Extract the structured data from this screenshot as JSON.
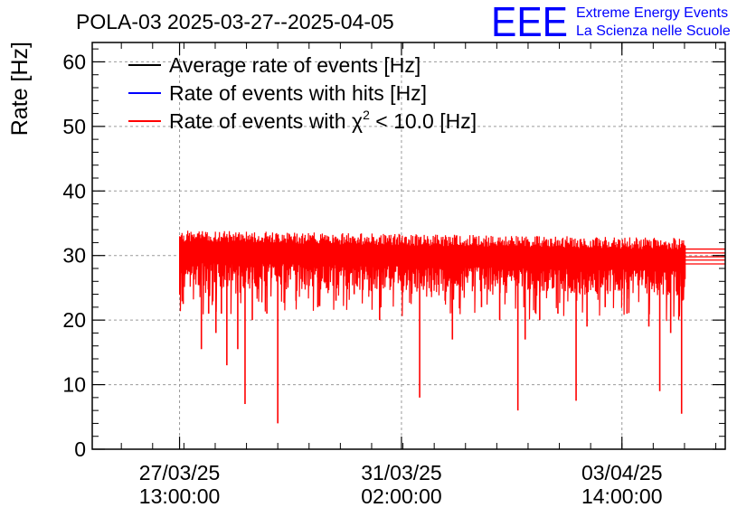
{
  "chart_data": {
    "type": "line",
    "title": "POLA-03 2025-03-27--2025-04-05",
    "ylabel": "Rate [Hz]",
    "xlabel": "",
    "ylim": [
      0,
      63
    ],
    "y_ticks": [
      0,
      10,
      20,
      30,
      40,
      50,
      60
    ],
    "x_range_hours": [
      0,
      174
    ],
    "x_ticks": [
      {
        "line1": "27/03/25",
        "line2": "13:00:00"
      },
      {
        "line1": "31/03/25",
        "line2": "02:00:00"
      },
      {
        "line1": "03/04/25",
        "line2": "14:00:00"
      }
    ],
    "grid": true,
    "legend_position": "top-left",
    "legend": [
      {
        "label": "Average rate of events [Hz]",
        "color": "#000000"
      },
      {
        "label": "Rate of events with hits [Hz]",
        "color": "#0000ff"
      },
      {
        "label_prefix": "Rate of events with ",
        "label_symbol": "χ",
        "label_sup": "2",
        "label_suffix": " < 10.0 [Hz]",
        "color": "#ff0000"
      }
    ],
    "series": [
      {
        "name": "Rate of events with χ2 < 10.0 [Hz]",
        "color": "#ff0000",
        "baseline": 30.0,
        "time_span_hours": [
          24,
          163
        ],
        "drops": [
          {
            "t": 25,
            "y": 22.5
          },
          {
            "t": 30,
            "y": 15.5
          },
          {
            "t": 32,
            "y": 21
          },
          {
            "t": 34,
            "y": 18
          },
          {
            "t": 35.5,
            "y": 21
          },
          {
            "t": 37,
            "y": 13
          },
          {
            "t": 40,
            "y": 15.5
          },
          {
            "t": 42,
            "y": 7
          },
          {
            "t": 44,
            "y": 20
          },
          {
            "t": 48,
            "y": 21
          },
          {
            "t": 51,
            "y": 4
          },
          {
            "t": 56,
            "y": 23
          },
          {
            "t": 62,
            "y": 22
          },
          {
            "t": 67,
            "y": 23
          },
          {
            "t": 72,
            "y": 24
          },
          {
            "t": 79,
            "y": 20
          },
          {
            "t": 90,
            "y": 8
          },
          {
            "t": 97,
            "y": 23
          },
          {
            "t": 99,
            "y": 17
          },
          {
            "t": 107,
            "y": 22
          },
          {
            "t": 112,
            "y": 20
          },
          {
            "t": 117,
            "y": 6
          },
          {
            "t": 119,
            "y": 17
          },
          {
            "t": 123,
            "y": 20
          },
          {
            "t": 128,
            "y": 21
          },
          {
            "t": 133,
            "y": 7.5
          },
          {
            "t": 136,
            "y": 19
          },
          {
            "t": 141,
            "y": 22
          },
          {
            "t": 147,
            "y": 21
          },
          {
            "t": 153,
            "y": 19
          },
          {
            "t": 156,
            "y": 9
          },
          {
            "t": 159,
            "y": 18
          },
          {
            "t": 162,
            "y": 5.5
          }
        ]
      }
    ]
  },
  "logo": {
    "text": "EEE",
    "line1": "Extreme Energy Events",
    "line2": "La Scienza nelle Scuole",
    "color": "#0000ff"
  }
}
